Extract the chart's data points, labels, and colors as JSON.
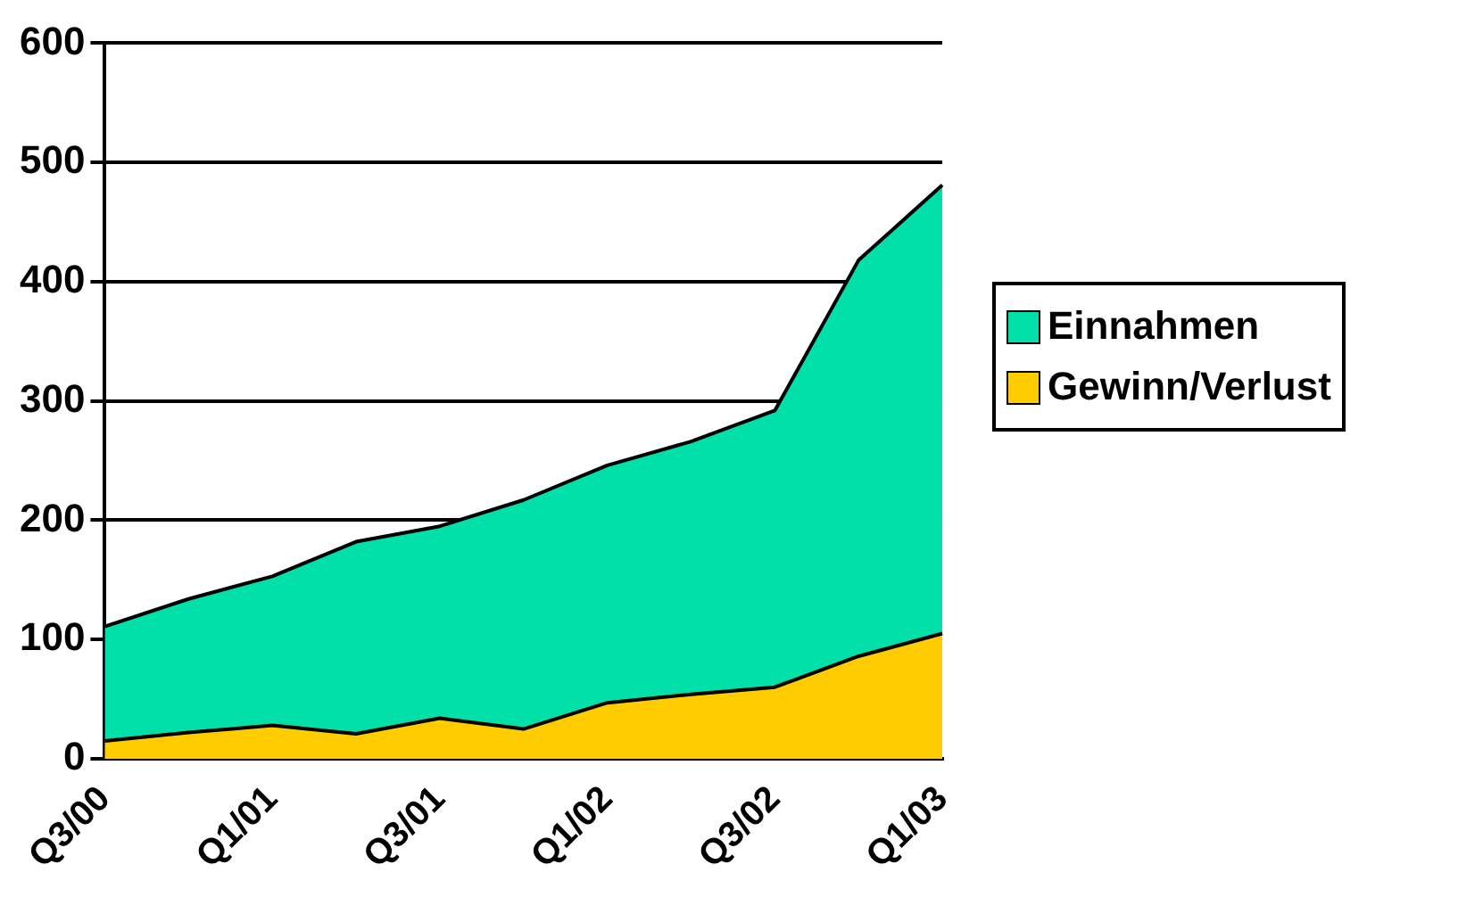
{
  "chart_data": {
    "type": "area",
    "categories": [
      "Q3/00",
      null,
      "Q1/01",
      null,
      "Q3/01",
      null,
      "Q1/02",
      null,
      "Q3/02",
      null,
      "Q1/03"
    ],
    "series": [
      {
        "name": "Einnahmen",
        "color": "#00e0a8",
        "values": [
          111,
          134,
          153,
          182,
          195,
          217,
          246,
          266,
          292,
          418,
          481
        ]
      },
      {
        "name": "Gewinn/Verlust",
        "color": "#ffcc00",
        "values": [
          15,
          22,
          28,
          21,
          34,
          25,
          47,
          54,
          60,
          86,
          105
        ]
      }
    ],
    "ylim": [
      0,
      600
    ],
    "yticks": [
      0,
      100,
      200,
      300,
      400,
      500,
      600
    ],
    "grid": "y",
    "legend": "right"
  }
}
